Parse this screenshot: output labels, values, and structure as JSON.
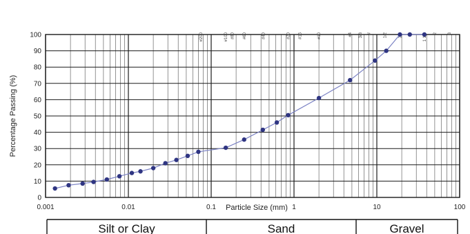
{
  "chart_data": {
    "type": "scatter",
    "title": "",
    "xlabel": "Particle Size (mm)",
    "ylabel": "Percentage Passing (%)",
    "xscale": "log",
    "xlim": [
      0.001,
      100
    ],
    "ylim": [
      0,
      100
    ],
    "grid": true,
    "x_tick_labels": [
      "0.001",
      "0.01",
      "0.1",
      "1",
      "10",
      "100"
    ],
    "y_tick_labels": [
      "0",
      "10",
      "20",
      "30",
      "40",
      "50",
      "60",
      "70",
      "80",
      "90",
      "100"
    ],
    "sieve_labels": [
      {
        "x": 0.075,
        "label": "#200"
      },
      {
        "x": 0.15,
        "label": "#100"
      },
      {
        "x": 0.18,
        "label": "#80"
      },
      {
        "x": 0.25,
        "label": "#60"
      },
      {
        "x": 0.425,
        "label": "#40"
      },
      {
        "x": 0.85,
        "label": "#20"
      },
      {
        "x": 1.18,
        "label": "#16"
      },
      {
        "x": 2.0,
        "label": "#10"
      },
      {
        "x": 4.75,
        "label": "#4"
      },
      {
        "x": 6.3,
        "label": "3/8"
      },
      {
        "x": 8.0,
        "label": "#"
      },
      {
        "x": 12.5,
        "label": "1/2"
      },
      {
        "x": 19.0,
        "label": "3/4"
      },
      {
        "x": 25.0,
        "label": "1"
      },
      {
        "x": 37.5,
        "label": "1 1/2"
      },
      {
        "x": 50.0,
        "label": "2"
      },
      {
        "x": 75.0,
        "label": "3"
      }
    ],
    "series": [
      {
        "color": "#3a3f8f",
        "x": [
          0.0013,
          0.0019,
          0.0028,
          0.0038,
          0.0055,
          0.0078,
          0.011,
          0.014,
          0.02,
          0.028,
          0.038,
          0.052,
          0.07,
          0.15,
          0.25,
          0.42,
          0.62,
          0.85,
          2.0,
          4.75,
          9.5,
          13,
          19,
          25,
          37.5
        ],
        "y": [
          5.5,
          7.5,
          8.5,
          9.5,
          11,
          13,
          15,
          16,
          18,
          21,
          23,
          25.5,
          28,
          30.5,
          35.5,
          41.5,
          46,
          50.5,
          61,
          72,
          84,
          90,
          100,
          100,
          100
        ]
      }
    ]
  },
  "soil_bands": [
    {
      "label": "Silt or Clay"
    },
    {
      "label": "Sand"
    },
    {
      "label": "Gravel"
    }
  ],
  "colors": {
    "series_line": "#7b82c4",
    "series_marker": "#2f3582",
    "grid": "#1a1a1a",
    "minor_grid": "#777777"
  }
}
